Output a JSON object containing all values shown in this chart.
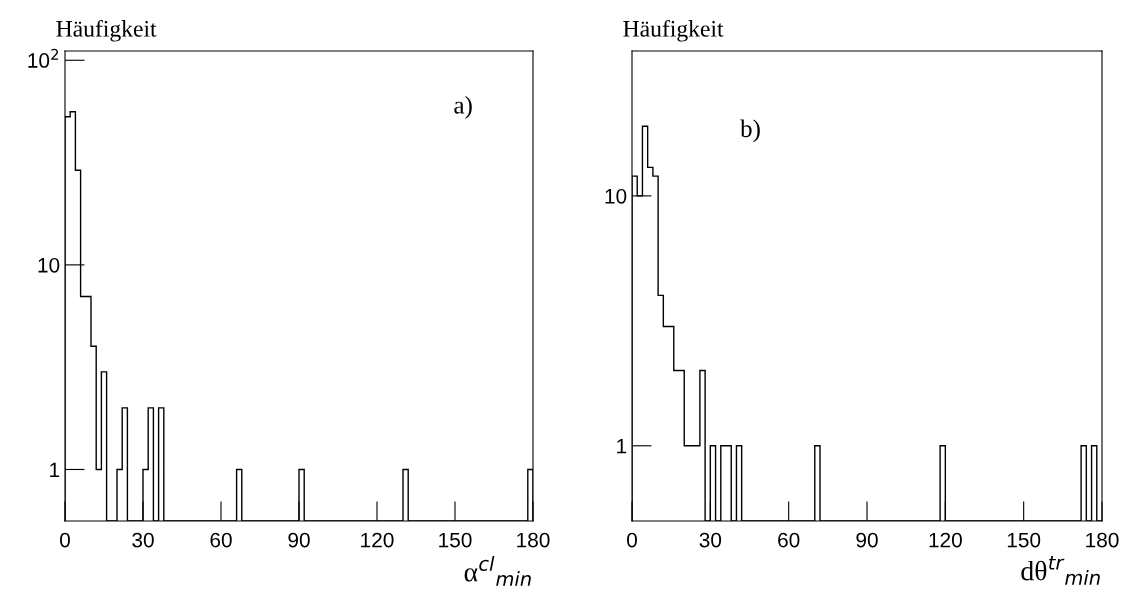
{
  "chart_data": [
    {
      "type": "histogram",
      "ylabel": "Häufigkeit",
      "xlabel": "α$^{cl}$$_{min}$",
      "annotations": [
        "a)"
      ],
      "log": "y",
      "color": "#000000",
      "bins": [
        0,
        2,
        4,
        6,
        8,
        10,
        12,
        14,
        16,
        18,
        20,
        22,
        24,
        26,
        28,
        30,
        32,
        34,
        36,
        38,
        40,
        42,
        44,
        46,
        48,
        50,
        52,
        54,
        56,
        58,
        60,
        62,
        64,
        66,
        68,
        70,
        72,
        74,
        76,
        78,
        80,
        82,
        84,
        86,
        88,
        90,
        92,
        94,
        96,
        98,
        100,
        102,
        104,
        106,
        108,
        110,
        112,
        114,
        116,
        118,
        120,
        122,
        124,
        126,
        128,
        130,
        132,
        134,
        136,
        138,
        140,
        142,
        144,
        146,
        148,
        150,
        152,
        154,
        156,
        158,
        160,
        162,
        164,
        166,
        168,
        170,
        172,
        174,
        176,
        178,
        180
      ],
      "values": [
        53,
        56,
        29,
        7,
        7,
        4,
        1,
        3,
        null,
        null,
        1,
        2,
        null,
        null,
        null,
        1,
        2,
        null,
        2,
        null,
        null,
        null,
        null,
        null,
        null,
        null,
        null,
        null,
        null,
        null,
        null,
        null,
        null,
        1,
        null,
        null,
        null,
        null,
        null,
        null,
        null,
        null,
        null,
        null,
        null,
        1,
        null,
        null,
        null,
        null,
        null,
        null,
        null,
        null,
        null,
        null,
        null,
        null,
        null,
        null,
        null,
        null,
        null,
        null,
        null,
        1,
        null,
        null,
        null,
        null,
        null,
        null,
        null,
        null,
        null,
        null,
        null,
        null,
        null,
        null,
        null,
        null,
        null,
        null,
        null,
        null,
        null,
        null,
        null,
        1
      ],
      "xlim": [
        0,
        180
      ],
      "ylim": [
        0.56,
        111
      ],
      "xticks": [
        0,
        30,
        60,
        90,
        120,
        150,
        180
      ],
      "yticks": [
        1,
        10,
        {
          "value": 100,
          "label": "10$^{2}$"
        }
      ],
      "grid": false,
      "legend": false
    },
    {
      "type": "histogram",
      "ylabel": "Häufigkeit",
      "xlabel": "dθ$^{tr}$$_{min}$",
      "annotations": [
        "b)"
      ],
      "log": "y",
      "color": "#000000",
      "bins": [
        0,
        2,
        4,
        6,
        8,
        10,
        12,
        14,
        16,
        18,
        20,
        22,
        24,
        26,
        28,
        30,
        32,
        34,
        36,
        38,
        40,
        42,
        44,
        46,
        48,
        50,
        52,
        54,
        56,
        58,
        60,
        62,
        64,
        66,
        68,
        70,
        72,
        74,
        76,
        78,
        80,
        82,
        84,
        86,
        88,
        90,
        92,
        94,
        96,
        98,
        100,
        102,
        104,
        106,
        108,
        110,
        112,
        114,
        116,
        118,
        120,
        122,
        124,
        126,
        128,
        130,
        132,
        134,
        136,
        138,
        140,
        142,
        144,
        146,
        148,
        150,
        152,
        154,
        156,
        158,
        160,
        162,
        164,
        166,
        168,
        170,
        172,
        174,
        176,
        178,
        180
      ],
      "values": [
        12,
        10,
        19,
        13,
        12,
        4,
        3,
        3,
        2,
        2,
        1,
        1,
        1,
        2,
        null,
        1,
        null,
        1,
        1,
        null,
        1,
        null,
        null,
        null,
        null,
        null,
        null,
        null,
        null,
        null,
        null,
        null,
        null,
        null,
        null,
        1,
        null,
        null,
        null,
        null,
        null,
        null,
        null,
        null,
        null,
        null,
        null,
        null,
        null,
        null,
        null,
        null,
        null,
        null,
        null,
        null,
        null,
        null,
        null,
        1,
        null,
        null,
        null,
        null,
        null,
        null,
        null,
        null,
        null,
        null,
        null,
        null,
        null,
        null,
        null,
        null,
        null,
        null,
        null,
        null,
        null,
        null,
        null,
        null,
        null,
        null,
        1,
        null,
        1,
        null
      ],
      "xlim": [
        0,
        180
      ],
      "ylim": [
        0.5,
        38
      ],
      "xticks": [
        0,
        30,
        60,
        90,
        120,
        150,
        180
      ],
      "yticks": [
        1,
        10
      ],
      "grid": false,
      "legend": false
    }
  ]
}
